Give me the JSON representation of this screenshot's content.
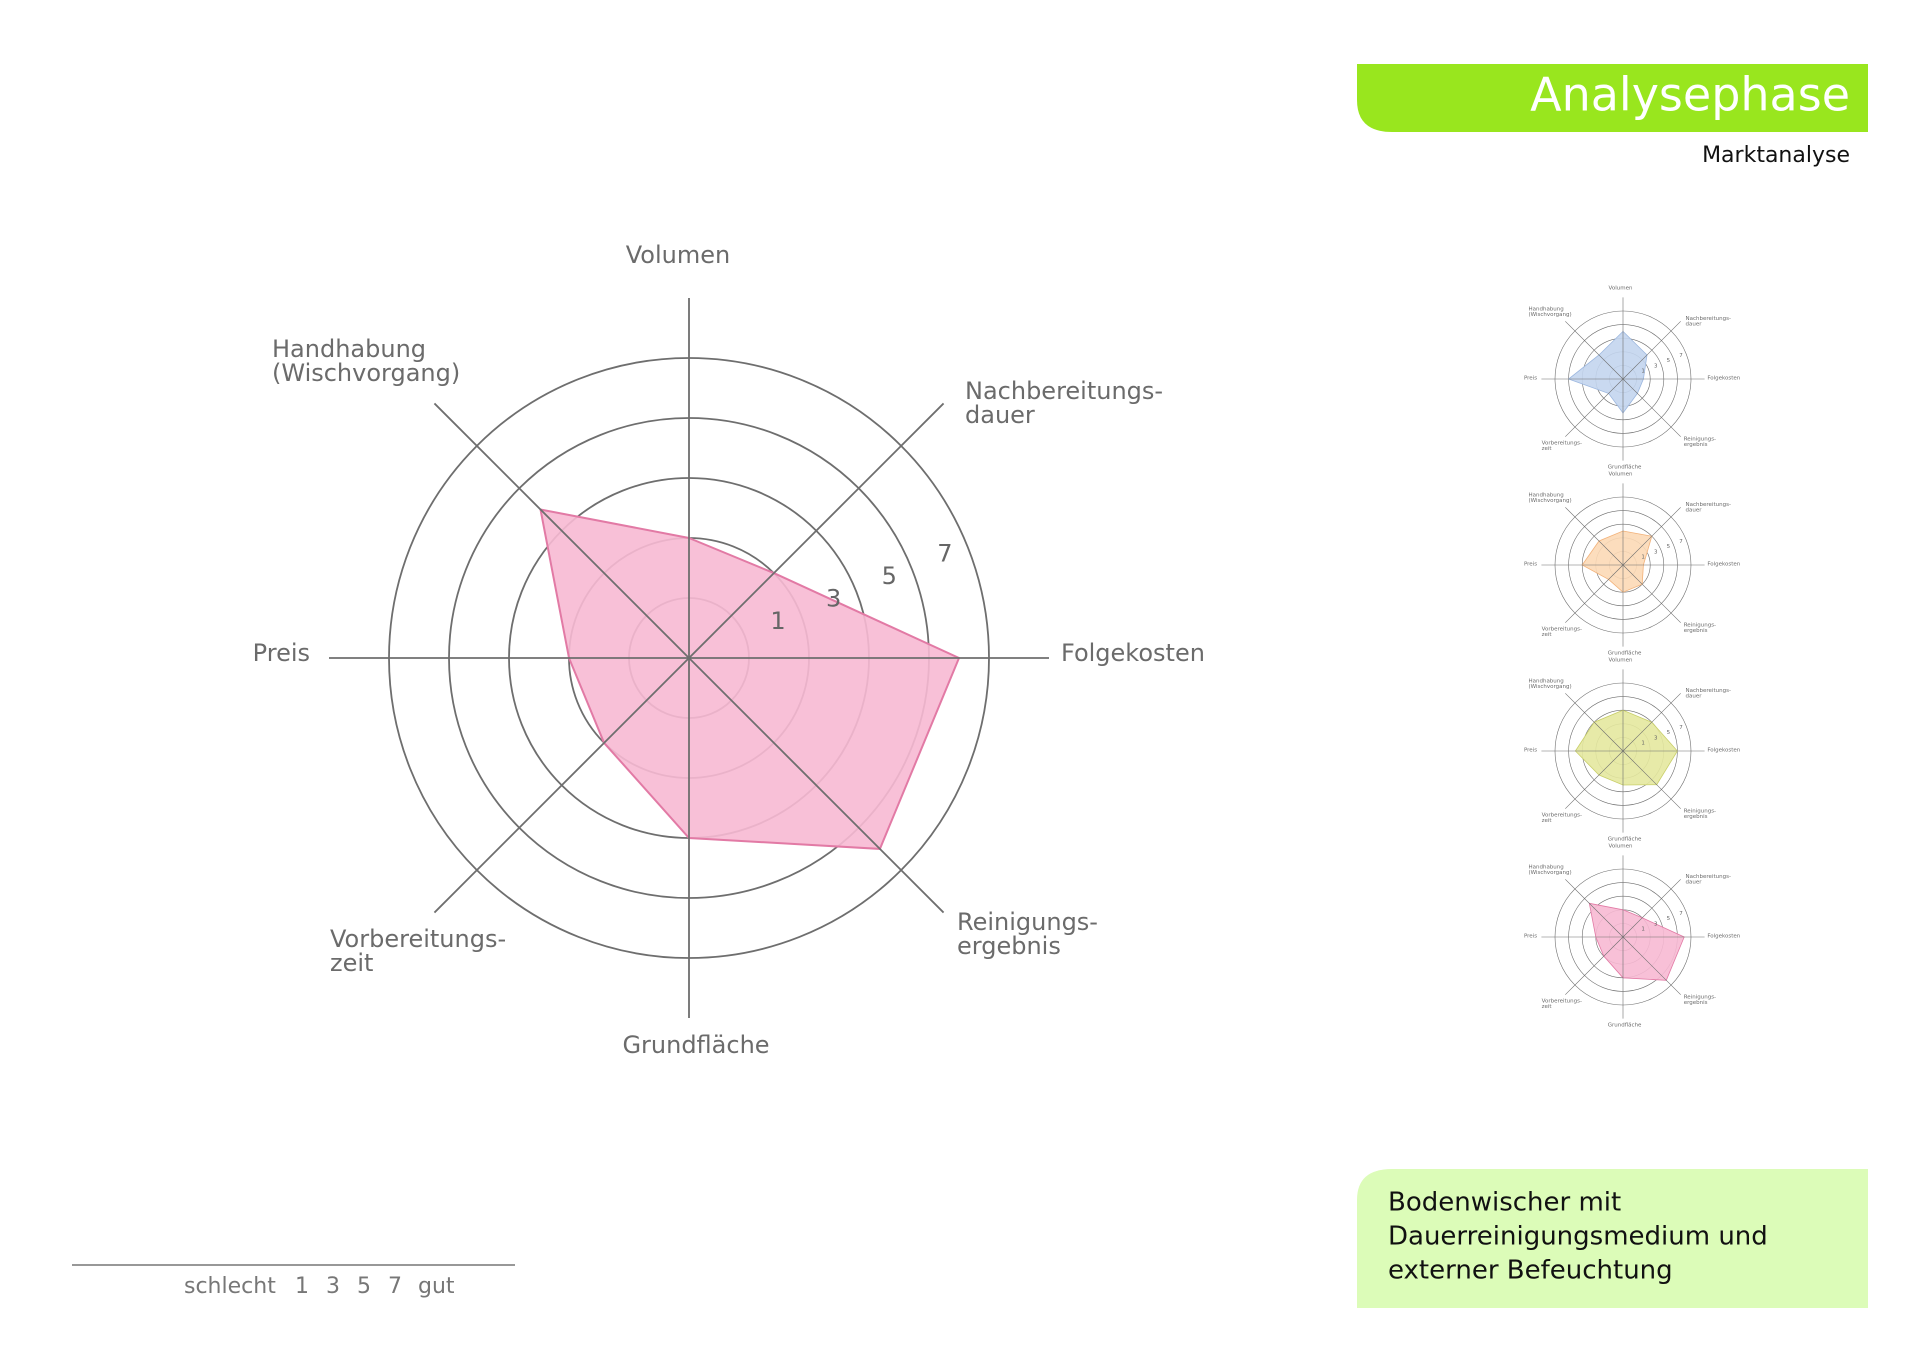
{
  "header": {
    "title": "Analysephase",
    "subtitle": "Marktanalyse"
  },
  "chart_data": {
    "type": "radar",
    "categories": [
      [
        "Volumen"
      ],
      [
        "Nachbereitungs-",
        "dauer"
      ],
      [
        "Folgekosten"
      ],
      [
        "Reinigungs-",
        "ergebnis"
      ],
      [
        "Grundfläche"
      ],
      [
        "Vorbereitungs-",
        "zeit"
      ],
      [
        "Preis"
      ],
      [
        "Handhabung",
        "(Wischvorgang)"
      ]
    ],
    "values": [
      2,
      2,
      7,
      7,
      4,
      2,
      2,
      5
    ],
    "color": "#f7b9d3",
    "edge_color": "#e27aa5",
    "rlim": [
      -2,
      8
    ],
    "rticks": [
      1,
      3,
      5,
      7
    ],
    "rgrid": [
      0,
      2,
      4,
      6,
      8
    ]
  },
  "thumbnails": [
    {
      "color": "#c3d5ee",
      "edge_color": "#9cb7df",
      "values": [
        5,
        3,
        1,
        1,
        3,
        1,
        6,
        3
      ]
    },
    {
      "color": "#fcd9b6",
      "edge_color": "#f2b27a",
      "values": [
        3,
        4,
        1,
        2,
        2,
        1,
        4,
        3
      ]
    },
    {
      "color": "#e4e89e",
      "edge_color": "#c9cf6a",
      "values": [
        4,
        4,
        6,
        5,
        3,
        3,
        5,
        4
      ]
    },
    {
      "color": "#f7b9d3",
      "edge_color": "#e27aa5",
      "values": [
        2,
        2,
        7,
        7,
        4,
        2,
        2,
        5
      ]
    }
  ],
  "scale_legend": {
    "low": "schlecht",
    "high": "gut"
  },
  "product": {
    "lines": [
      "Bodenwischer mit",
      "Dauerreinigungsmedium und",
      "externer Befeuchtung"
    ]
  }
}
